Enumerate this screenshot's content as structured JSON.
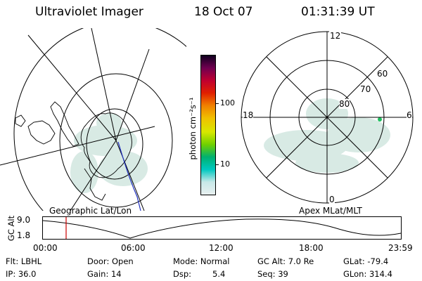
{
  "header": {
    "title": "Ultraviolet Imager",
    "date": "18 Oct 07",
    "time": "01:31:39 UT"
  },
  "geo_panel": {
    "label": "Geographic Lat/Lon"
  },
  "mag_panel": {
    "label": "Apex MLat/MLT",
    "lat_rings": [
      "80",
      "70",
      "60"
    ],
    "mlt_labels": {
      "top": "12",
      "right": "6",
      "bottom": "0",
      "left": "18"
    }
  },
  "colorbar": {
    "unit_label": "photon cm⁻²s⁻¹",
    "ticks": [
      "100",
      "10"
    ],
    "scale": "log",
    "colors": [
      "#e8f0f0",
      "#c8e8e8",
      "#00c8c0",
      "#00b070",
      "#70d000",
      "#d8e800",
      "#f0c000",
      "#f08000",
      "#e02000",
      "#c00030",
      "#700050",
      "#100020"
    ]
  },
  "timeline": {
    "y_label": "GC Alt",
    "y_ticks": [
      "9.0",
      "1.8"
    ],
    "x_ticks": [
      "00:00",
      "06:00",
      "12:00",
      "18:00",
      "23:59"
    ],
    "cursor_time": "01:31",
    "cursor_color": "#cc0000"
  },
  "footer": {
    "row1": {
      "filter": "Flt: LBHL",
      "door": "Door: Open",
      "mode": "Mode: Normal",
      "gc_alt": "GC Alt: 7.0 Re",
      "glat": "GLat: -79.4"
    },
    "row2": {
      "ip": "IP: 36.0",
      "gain": "Gain: 14",
      "dsp_label": "Dsp:",
      "dsp_value": "5.4",
      "seq": "Seq: 39",
      "glon": "GLon: 314.4"
    }
  }
}
